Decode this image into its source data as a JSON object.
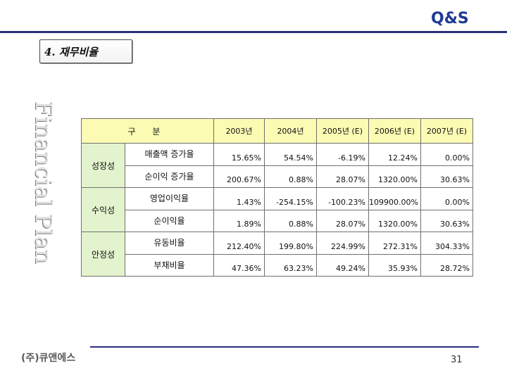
{
  "header": {
    "logo_text": "Q&S"
  },
  "section": {
    "title": "4. 재무비율"
  },
  "side_title": "Financial Plan",
  "table": {
    "headers": [
      "구 분",
      "2003년",
      "2004년",
      "2005년 (E)",
      "2006년 (E)",
      "2007년 (E)"
    ],
    "groups": [
      {
        "category": "성장성",
        "rows": [
          {
            "item": "매출액 증가율",
            "values": [
              "15.65%",
              "54.54%",
              "-6.19%",
              "12.24%",
              "0.00%"
            ]
          },
          {
            "item": "순이익 증가율",
            "values": [
              "200.67%",
              "0.88%",
              "28.07%",
              "1320.00%",
              "30.63%"
            ]
          }
        ]
      },
      {
        "category": "수익성",
        "rows": [
          {
            "item": "영업이익율",
            "values": [
              "1.43%",
              "-254.15%",
              "-100.23%",
              "109900.00%",
              "0.00%"
            ]
          },
          {
            "item": "순이익율",
            "values": [
              "1.89%",
              "0.88%",
              "28.07%",
              "1320.00%",
              "30.63%"
            ]
          }
        ]
      },
      {
        "category": "안정성",
        "rows": [
          {
            "item": "유동비율",
            "values": [
              "212.40%",
              "199.80%",
              "224.99%",
              "272.31%",
              "304.33%"
            ]
          },
          {
            "item": "부채비율",
            "values": [
              "47.36%",
              "63.23%",
              "49.24%",
              "35.93%",
              "28.72%"
            ]
          }
        ]
      }
    ]
  },
  "footer": {
    "company": "(주)큐앤에스",
    "page_number": "31"
  },
  "colors": {
    "header_fill": "#fbfbb4",
    "category_fill": "#e3f3cd",
    "rule": "#2a2f7a"
  }
}
